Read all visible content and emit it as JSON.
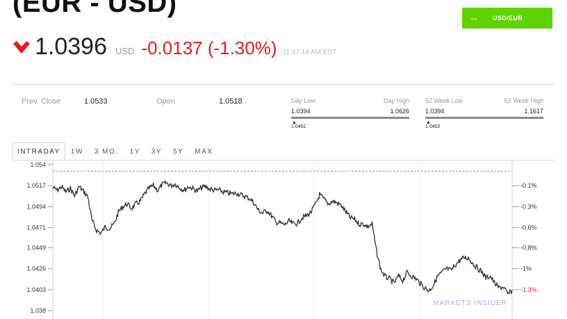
{
  "header": {
    "title": "(EUR - USD)",
    "convert_button": "USD/EUR"
  },
  "quote": {
    "price": "1.0396",
    "currency": "USD",
    "change": "-0.0137 (-1.30%)",
    "time": "11:37:14 AM EST",
    "direction_icon": "down-arrow-icon",
    "down_color": "#e31a1a",
    "accent_color": "#5fd300"
  },
  "stats": {
    "prev_close_label": "Prev. Close",
    "prev_close_value": "1.0533",
    "open_label": "Open",
    "open_value": "1.0518",
    "day_range": {
      "low_label": "Day Low",
      "low_value": "1.0394",
      "high_label": "Day High",
      "high_value": "1.0626",
      "current": "1.0402"
    },
    "week52_range": {
      "low_label": "52 Week Low",
      "low_value": "1.0394",
      "high_label": "52 Week High",
      "high_value": "1.1617",
      "current": "1.0402"
    }
  },
  "tabs": [
    "INTRADAY",
    "1W",
    "3 MO.",
    "1Y",
    "3Y",
    "5Y",
    "MAX"
  ],
  "active_tab": "INTRADAY",
  "chart_data": {
    "type": "line",
    "y_ticks": [
      "1.054",
      "1.0517",
      "1.0494",
      "1.0471",
      "1.0449",
      "1.0426",
      "1.0403",
      "1.038"
    ],
    "right_ticks": [
      "-0.1%",
      "-0.3%",
      "-0.6%",
      "-0.8%",
      "-1%",
      "-1.3%"
    ],
    "ylim": [
      1.038,
      1.054
    ],
    "prev_close_line": 1.0533,
    "watermark": "MARKETS INSIDER",
    "line_color": "#3a3a3a",
    "last_tick_color": "#e31a1a",
    "series": [
      {
        "values": [
          1.0515,
          1.0512,
          1.0516,
          1.051,
          1.0514,
          1.0506,
          1.0516,
          1.0511,
          1.0505,
          1.0478,
          1.0468,
          1.0465,
          1.0472,
          1.047,
          1.0475,
          1.0488,
          1.0494,
          1.0497,
          1.0492,
          1.0497,
          1.05,
          1.0508,
          1.0514,
          1.0517,
          1.0512,
          1.0518,
          1.052,
          1.0517,
          1.0519,
          1.0515,
          1.0512,
          1.0516,
          1.0514,
          1.0511,
          1.0515,
          1.0516,
          1.0513,
          1.0512,
          1.0512,
          1.051,
          1.0509,
          1.0508,
          1.0509,
          1.0507,
          1.0505,
          1.0503,
          1.0498,
          1.049,
          1.0487,
          1.049,
          1.0484,
          1.0477,
          1.0476,
          1.0474,
          1.0478,
          1.0475,
          1.0476,
          1.0482,
          1.0484,
          1.0488,
          1.0496,
          1.0507,
          1.0502,
          1.0497,
          1.05,
          1.0498,
          1.0495,
          1.0488,
          1.0482,
          1.048,
          1.0475,
          1.0475,
          1.0472,
          1.0475,
          1.0445,
          1.0425,
          1.0417,
          1.0415,
          1.041,
          1.0418,
          1.0413,
          1.0422,
          1.0418,
          1.0415,
          1.041,
          1.0405,
          1.0402,
          1.0408,
          1.0418,
          1.0422,
          1.0426,
          1.0424,
          1.043,
          1.0435,
          1.0438,
          1.0438,
          1.0432,
          1.0427,
          1.0423,
          1.0416,
          1.0418,
          1.041,
          1.0405,
          1.0406,
          1.0398,
          1.0402
        ]
      }
    ]
  }
}
